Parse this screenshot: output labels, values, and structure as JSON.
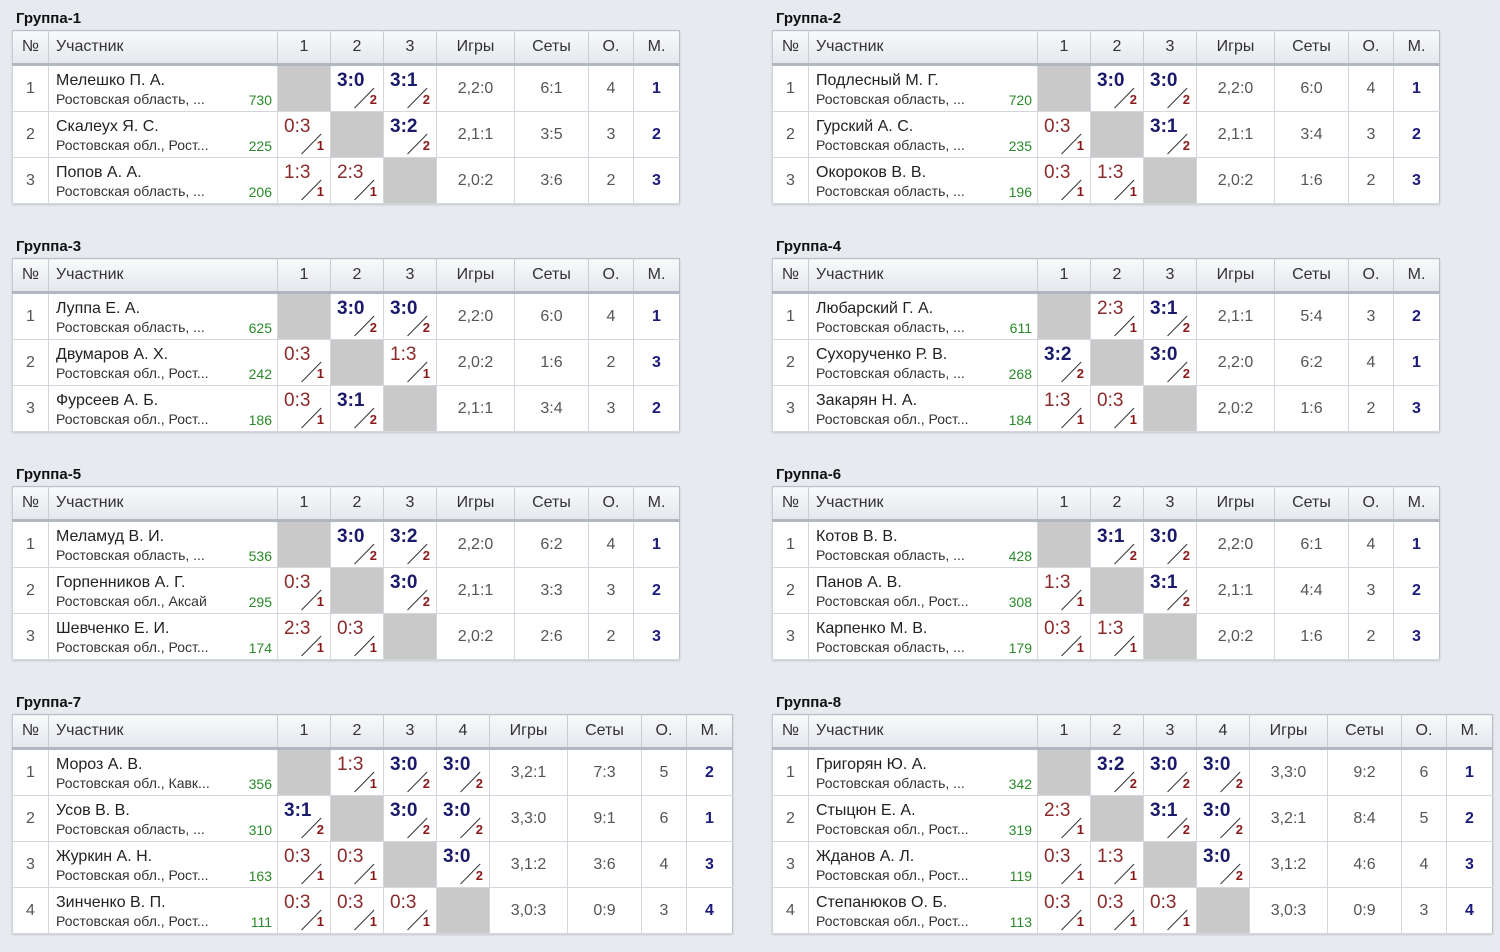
{
  "headers": {
    "num": "№",
    "participant": "Участник",
    "games": "Игры",
    "sets": "Сеты",
    "points": "О.",
    "place": "М."
  },
  "groups": [
    {
      "title": "Группа-1",
      "cols": [
        "1",
        "2",
        "3"
      ],
      "rows": [
        {
          "num": "1",
          "name": "Мелешко П. А.",
          "region": "Ростовская область, ...",
          "rating": "730",
          "scores": [
            null,
            {
              "s": "3:0",
              "p": "2",
              "w": true
            },
            {
              "s": "3:1",
              "p": "2",
              "w": true
            }
          ],
          "games": "2,2:0",
          "sets": "6:1",
          "points": "4",
          "place": "1"
        },
        {
          "num": "2",
          "name": "Скалеух Я. С.",
          "region": "Ростовская обл., Рост...",
          "rating": "225",
          "scores": [
            {
              "s": "0:3",
              "p": "1",
              "w": false
            },
            null,
            {
              "s": "3:2",
              "p": "2",
              "w": true
            }
          ],
          "games": "2,1:1",
          "sets": "3:5",
          "points": "3",
          "place": "2"
        },
        {
          "num": "3",
          "name": "Попов А. А.",
          "region": "Ростовская область, ...",
          "rating": "206",
          "scores": [
            {
              "s": "1:3",
              "p": "1",
              "w": false
            },
            {
              "s": "2:3",
              "p": "1",
              "w": false
            },
            null
          ],
          "games": "2,0:2",
          "sets": "3:6",
          "points": "2",
          "place": "3"
        }
      ]
    },
    {
      "title": "Группа-2",
      "cols": [
        "1",
        "2",
        "3"
      ],
      "rows": [
        {
          "num": "1",
          "name": "Подлесный М. Г.",
          "region": "Ростовская область, ...",
          "rating": "720",
          "scores": [
            null,
            {
              "s": "3:0",
              "p": "2",
              "w": true
            },
            {
              "s": "3:0",
              "p": "2",
              "w": true
            }
          ],
          "games": "2,2:0",
          "sets": "6:0",
          "points": "4",
          "place": "1"
        },
        {
          "num": "2",
          "name": "Гурский А. С.",
          "region": "Ростовская область, ...",
          "rating": "235",
          "scores": [
            {
              "s": "0:3",
              "p": "1",
              "w": false
            },
            null,
            {
              "s": "3:1",
              "p": "2",
              "w": true
            }
          ],
          "games": "2,1:1",
          "sets": "3:4",
          "points": "3",
          "place": "2"
        },
        {
          "num": "3",
          "name": "Окороков В. В.",
          "region": "Ростовская область, ...",
          "rating": "196",
          "scores": [
            {
              "s": "0:3",
              "p": "1",
              "w": false
            },
            {
              "s": "1:3",
              "p": "1",
              "w": false
            },
            null
          ],
          "games": "2,0:2",
          "sets": "1:6",
          "points": "2",
          "place": "3"
        }
      ]
    },
    {
      "title": "Группа-3",
      "cols": [
        "1",
        "2",
        "3"
      ],
      "rows": [
        {
          "num": "1",
          "name": "Луппа Е. А.",
          "region": "Ростовская область, ...",
          "rating": "625",
          "scores": [
            null,
            {
              "s": "3:0",
              "p": "2",
              "w": true
            },
            {
              "s": "3:0",
              "p": "2",
              "w": true
            }
          ],
          "games": "2,2:0",
          "sets": "6:0",
          "points": "4",
          "place": "1"
        },
        {
          "num": "2",
          "name": "Двумаров А. Х.",
          "region": "Ростовская обл., Рост...",
          "rating": "242",
          "scores": [
            {
              "s": "0:3",
              "p": "1",
              "w": false
            },
            null,
            {
              "s": "1:3",
              "p": "1",
              "w": false
            }
          ],
          "games": "2,0:2",
          "sets": "1:6",
          "points": "2",
          "place": "3"
        },
        {
          "num": "3",
          "name": "Фурсеев А. Б.",
          "region": "Ростовская обл., Рост...",
          "rating": "186",
          "scores": [
            {
              "s": "0:3",
              "p": "1",
              "w": false
            },
            {
              "s": "3:1",
              "p": "2",
              "w": true
            },
            null
          ],
          "games": "2,1:1",
          "sets": "3:4",
          "points": "3",
          "place": "2"
        }
      ]
    },
    {
      "title": "Группа-4",
      "cols": [
        "1",
        "2",
        "3"
      ],
      "rows": [
        {
          "num": "1",
          "name": "Любарский Г. А.",
          "region": "Ростовская область, ...",
          "rating": "611",
          "scores": [
            null,
            {
              "s": "2:3",
              "p": "1",
              "w": false
            },
            {
              "s": "3:1",
              "p": "2",
              "w": true
            }
          ],
          "games": "2,1:1",
          "sets": "5:4",
          "points": "3",
          "place": "2"
        },
        {
          "num": "2",
          "name": "Сухорученко Р. В.",
          "region": "Ростовская область, ...",
          "rating": "268",
          "scores": [
            {
              "s": "3:2",
              "p": "2",
              "w": true
            },
            null,
            {
              "s": "3:0",
              "p": "2",
              "w": true
            }
          ],
          "games": "2,2:0",
          "sets": "6:2",
          "points": "4",
          "place": "1"
        },
        {
          "num": "3",
          "name": "Закарян Н. А.",
          "region": "Ростовская обл., Рост...",
          "rating": "184",
          "scores": [
            {
              "s": "1:3",
              "p": "1",
              "w": false
            },
            {
              "s": "0:3",
              "p": "1",
              "w": false
            },
            null
          ],
          "games": "2,0:2",
          "sets": "1:6",
          "points": "2",
          "place": "3"
        }
      ]
    },
    {
      "title": "Группа-5",
      "cols": [
        "1",
        "2",
        "3"
      ],
      "rows": [
        {
          "num": "1",
          "name": "Меламуд В. И.",
          "region": "Ростовская область, ...",
          "rating": "536",
          "scores": [
            null,
            {
              "s": "3:0",
              "p": "2",
              "w": true
            },
            {
              "s": "3:2",
              "p": "2",
              "w": true
            }
          ],
          "games": "2,2:0",
          "sets": "6:2",
          "points": "4",
          "place": "1"
        },
        {
          "num": "2",
          "name": "Горпенников А. Г.",
          "region": "Ростовская обл., Аксай",
          "rating": "295",
          "scores": [
            {
              "s": "0:3",
              "p": "1",
              "w": false
            },
            null,
            {
              "s": "3:0",
              "p": "2",
              "w": true
            }
          ],
          "games": "2,1:1",
          "sets": "3:3",
          "points": "3",
          "place": "2"
        },
        {
          "num": "3",
          "name": "Шевченко Е. И.",
          "region": "Ростовская обл., Рост...",
          "rating": "174",
          "scores": [
            {
              "s": "2:3",
              "p": "1",
              "w": false
            },
            {
              "s": "0:3",
              "p": "1",
              "w": false
            },
            null
          ],
          "games": "2,0:2",
          "sets": "2:6",
          "points": "2",
          "place": "3"
        }
      ]
    },
    {
      "title": "Группа-6",
      "cols": [
        "1",
        "2",
        "3"
      ],
      "rows": [
        {
          "num": "1",
          "name": "Котов В. В.",
          "region": "Ростовская область, ...",
          "rating": "428",
          "scores": [
            null,
            {
              "s": "3:1",
              "p": "2",
              "w": true
            },
            {
              "s": "3:0",
              "p": "2",
              "w": true
            }
          ],
          "games": "2,2:0",
          "sets": "6:1",
          "points": "4",
          "place": "1"
        },
        {
          "num": "2",
          "name": "Панов А. В.",
          "region": "Ростовская обл., Рост...",
          "rating": "308",
          "scores": [
            {
              "s": "1:3",
              "p": "1",
              "w": false
            },
            null,
            {
              "s": "3:1",
              "p": "2",
              "w": true
            }
          ],
          "games": "2,1:1",
          "sets": "4:4",
          "points": "3",
          "place": "2"
        },
        {
          "num": "3",
          "name": "Карпенко М. В.",
          "region": "Ростовская область, ...",
          "rating": "179",
          "scores": [
            {
              "s": "0:3",
              "p": "1",
              "w": false
            },
            {
              "s": "1:3",
              "p": "1",
              "w": false
            },
            null
          ],
          "games": "2,0:2",
          "sets": "1:6",
          "points": "2",
          "place": "3"
        }
      ]
    },
    {
      "title": "Группа-7",
      "cols": [
        "1",
        "2",
        "3",
        "4"
      ],
      "rows": [
        {
          "num": "1",
          "name": "Мороз А. В.",
          "region": "Ростовская обл., Кавк...",
          "rating": "356",
          "scores": [
            null,
            {
              "s": "1:3",
              "p": "1",
              "w": false
            },
            {
              "s": "3:0",
              "p": "2",
              "w": true
            },
            {
              "s": "3:0",
              "p": "2",
              "w": true
            }
          ],
          "games": "3,2:1",
          "sets": "7:3",
          "points": "5",
          "place": "2"
        },
        {
          "num": "2",
          "name": "Усов В. В.",
          "region": "Ростовская область, ...",
          "rating": "310",
          "scores": [
            {
              "s": "3:1",
              "p": "2",
              "w": true
            },
            null,
            {
              "s": "3:0",
              "p": "2",
              "w": true
            },
            {
              "s": "3:0",
              "p": "2",
              "w": true
            }
          ],
          "games": "3,3:0",
          "sets": "9:1",
          "points": "6",
          "place": "1"
        },
        {
          "num": "3",
          "name": "Журкин А. Н.",
          "region": "Ростовская обл., Рост...",
          "rating": "163",
          "scores": [
            {
              "s": "0:3",
              "p": "1",
              "w": false
            },
            {
              "s": "0:3",
              "p": "1",
              "w": false
            },
            null,
            {
              "s": "3:0",
              "p": "2",
              "w": true
            }
          ],
          "games": "3,1:2",
          "sets": "3:6",
          "points": "4",
          "place": "3"
        },
        {
          "num": "4",
          "name": "Зинченко В. П.",
          "region": "Ростовская обл., Рост...",
          "rating": "111",
          "scores": [
            {
              "s": "0:3",
              "p": "1",
              "w": false
            },
            {
              "s": "0:3",
              "p": "1",
              "w": false
            },
            {
              "s": "0:3",
              "p": "1",
              "w": false
            },
            null
          ],
          "games": "3,0:3",
          "sets": "0:9",
          "points": "3",
          "place": "4"
        }
      ]
    },
    {
      "title": "Группа-8",
      "cols": [
        "1",
        "2",
        "3",
        "4"
      ],
      "rows": [
        {
          "num": "1",
          "name": "Григорян Ю. А.",
          "region": "Ростовская область, ...",
          "rating": "342",
          "scores": [
            null,
            {
              "s": "3:2",
              "p": "2",
              "w": true
            },
            {
              "s": "3:0",
              "p": "2",
              "w": true
            },
            {
              "s": "3:0",
              "p": "2",
              "w": true
            }
          ],
          "games": "3,3:0",
          "sets": "9:2",
          "points": "6",
          "place": "1"
        },
        {
          "num": "2",
          "name": "Стыцюн Е. А.",
          "region": "Ростовская обл., Рост...",
          "rating": "319",
          "scores": [
            {
              "s": "2:3",
              "p": "1",
              "w": false
            },
            null,
            {
              "s": "3:1",
              "p": "2",
              "w": true
            },
            {
              "s": "3:0",
              "p": "2",
              "w": true
            }
          ],
          "games": "3,2:1",
          "sets": "8:4",
          "points": "5",
          "place": "2"
        },
        {
          "num": "3",
          "name": "Жданов А. Л.",
          "region": "Ростовская обл., Рост...",
          "rating": "119",
          "scores": [
            {
              "s": "0:3",
              "p": "1",
              "w": false
            },
            {
              "s": "1:3",
              "p": "1",
              "w": false
            },
            null,
            {
              "s": "3:0",
              "p": "2",
              "w": true
            }
          ],
          "games": "3,1:2",
          "sets": "4:6",
          "points": "4",
          "place": "3"
        },
        {
          "num": "4",
          "name": "Степанюков О. Б.",
          "region": "Ростовская обл., Рост...",
          "rating": "113",
          "scores": [
            {
              "s": "0:3",
              "p": "1",
              "w": false
            },
            {
              "s": "0:3",
              "p": "1",
              "w": false
            },
            {
              "s": "0:3",
              "p": "1",
              "w": false
            },
            null
          ],
          "games": "3,0:3",
          "sets": "0:9",
          "points": "3",
          "place": "4"
        }
      ]
    }
  ]
}
